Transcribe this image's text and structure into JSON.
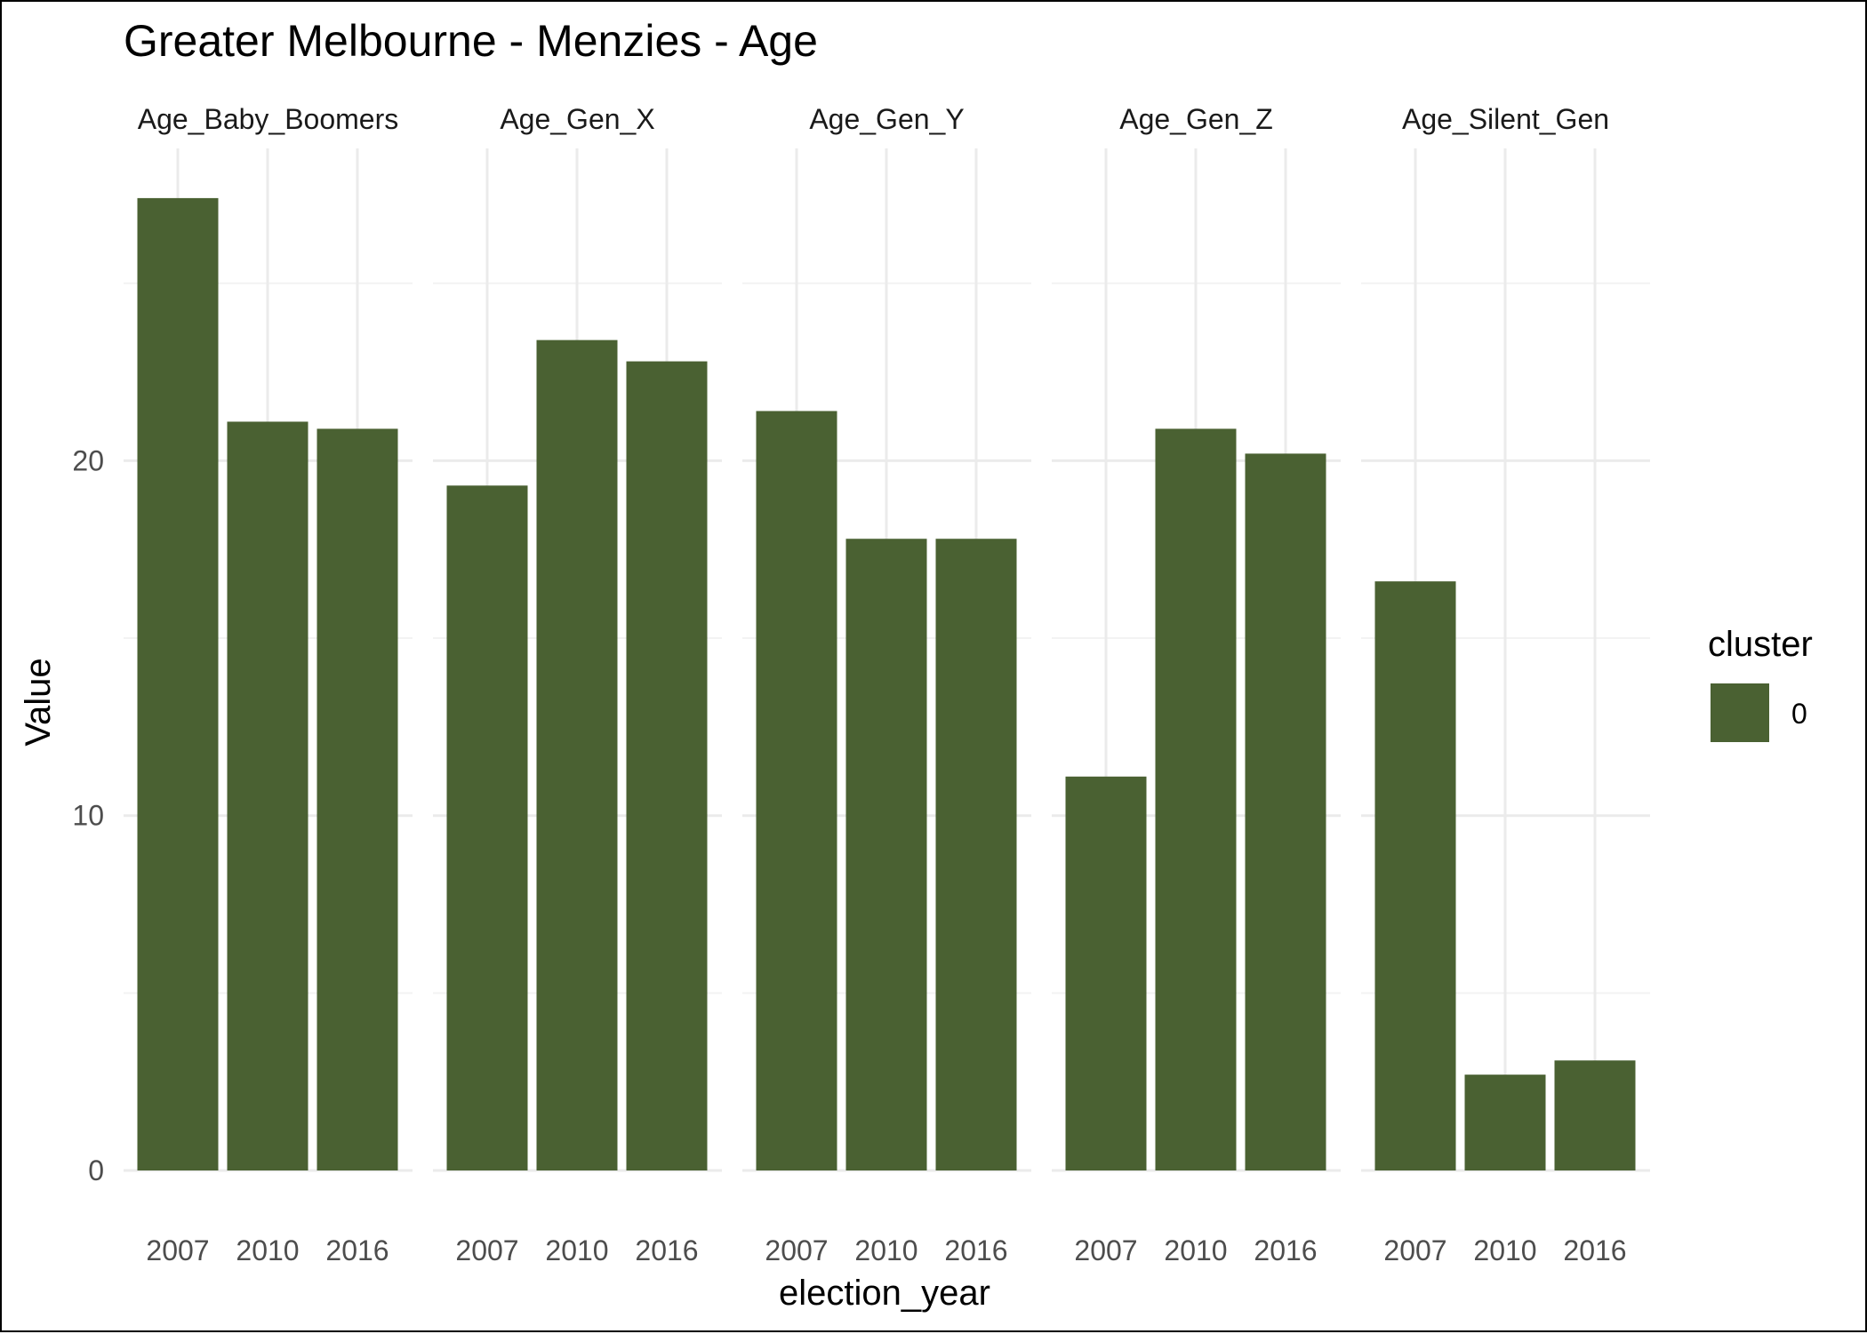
{
  "chart_data": {
    "type": "bar",
    "title": "Greater Melbourne - Menzies - Age",
    "xlabel": "election_year",
    "ylabel": "Value",
    "ylim": [
      0,
      28.8
    ],
    "yticks": [
      0,
      10,
      20
    ],
    "grid": true,
    "categories": [
      "2007",
      "2010",
      "2016"
    ],
    "bar_color": "#4a6132",
    "facets": [
      {
        "name": "Age_Baby_Boomers",
        "values": [
          27.4,
          21.1,
          20.9
        ]
      },
      {
        "name": "Age_Gen_X",
        "values": [
          19.3,
          23.4,
          22.8
        ]
      },
      {
        "name": "Age_Gen_Y",
        "values": [
          21.4,
          17.8,
          17.8
        ]
      },
      {
        "name": "Age_Gen_Z",
        "values": [
          11.1,
          20.9,
          20.2
        ]
      },
      {
        "name": "Age_Silent_Gen",
        "values": [
          16.6,
          2.7,
          3.1
        ]
      }
    ],
    "legend": {
      "title": "cluster",
      "position": "right",
      "entries": [
        {
          "label": "0",
          "color": "#4a6132"
        }
      ]
    }
  }
}
